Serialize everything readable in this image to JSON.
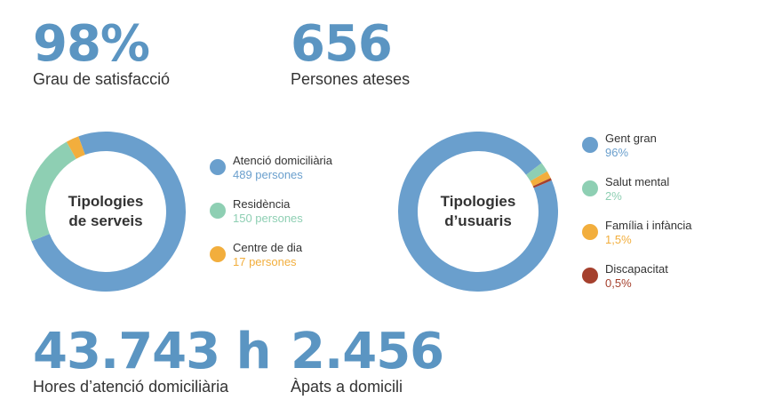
{
  "stats": [
    {
      "value": "98%",
      "caption": "Grau de satisfacció"
    },
    {
      "value": "656",
      "caption": "Persones ateses"
    },
    {
      "value": "43.743 h",
      "caption": "Hores d’atenció domiciliària"
    },
    {
      "value": "2.456",
      "caption": "Àpats a domicili"
    }
  ],
  "chart_data": [
    {
      "type": "pie",
      "title_lines": [
        "Tipologies",
        "de serveis"
      ],
      "categories": [
        "Atenció domiciliària",
        "Residència",
        "Centre de dia"
      ],
      "values": [
        489,
        150,
        17
      ],
      "value_labels": [
        "489 persones",
        "150 persones",
        "17 persones"
      ],
      "colors": [
        "#6a9fcd",
        "#8ecfb3",
        "#f2ae3d"
      ],
      "start_angle_deg": -20,
      "legend": "right"
    },
    {
      "type": "pie",
      "title_lines": [
        "Tipologies",
        "d’usuaris"
      ],
      "categories": [
        "Gent gran",
        "Salut mental",
        "Família i infància",
        "Discapacitat"
      ],
      "values": [
        96,
        2,
        1.5,
        0.5
      ],
      "value_labels": [
        "96%",
        "2%",
        "1,5%",
        "0,5%"
      ],
      "colors": [
        "#6a9fcd",
        "#8ecfb3",
        "#f2ae3d",
        "#a5402d"
      ],
      "start_angle_deg": 67,
      "legend": "right"
    }
  ]
}
